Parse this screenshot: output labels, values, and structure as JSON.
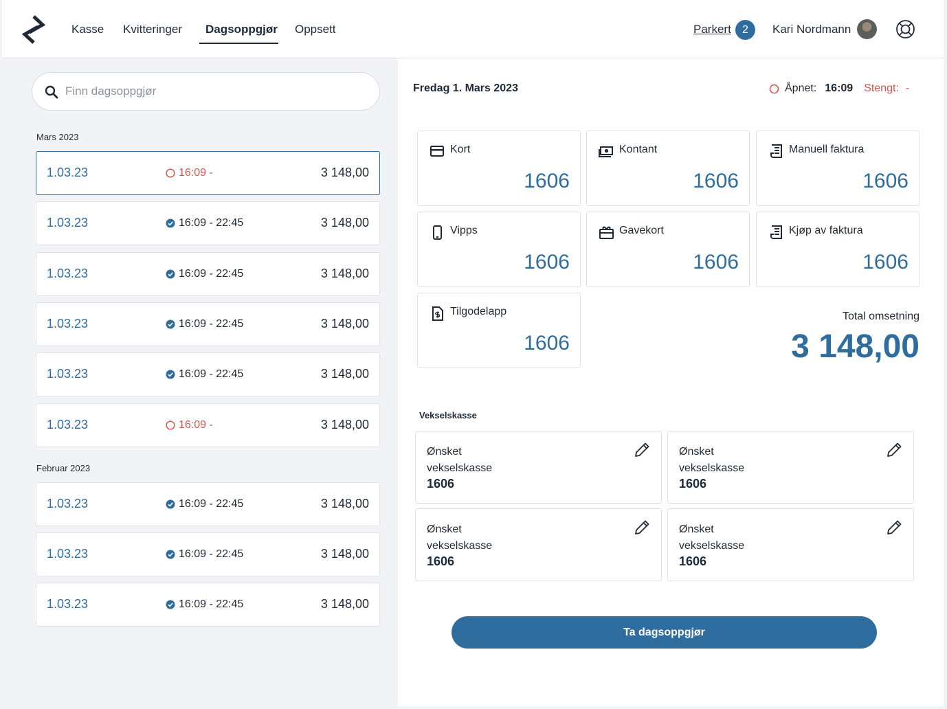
{
  "nav": {
    "items": [
      {
        "label": "Kasse"
      },
      {
        "label": "Kvitteringer"
      },
      {
        "label": "Dagsoppgjør",
        "active": true
      },
      {
        "label": "Oppsett"
      }
    ],
    "parked_label": "Parkert",
    "parked_count": "2",
    "user_name": "Kari Nordmann"
  },
  "search": {
    "placeholder": "Finn dagsoppgjør"
  },
  "groups": [
    {
      "month": "Mars 2023",
      "entries": [
        {
          "date": "1.03.23",
          "status": "open",
          "time": "16:09 -",
          "amount": "3 148,00",
          "selected": true
        },
        {
          "date": "1.03.23",
          "status": "closed",
          "time": "16:09 - 22:45",
          "amount": "3 148,00"
        },
        {
          "date": "1.03.23",
          "status": "closed",
          "time": "16:09 - 22:45",
          "amount": "3 148,00"
        },
        {
          "date": "1.03.23",
          "status": "closed",
          "time": "16:09 - 22:45",
          "amount": "3 148,00"
        },
        {
          "date": "1.03.23",
          "status": "closed",
          "time": "16:09 - 22:45",
          "amount": "3 148,00"
        },
        {
          "date": "1.03.23",
          "status": "open",
          "time": "16:09 -",
          "amount": "3 148,00"
        }
      ]
    },
    {
      "month": "Februar 2023",
      "entries": [
        {
          "date": "1.03.23",
          "status": "closed",
          "time": "16:09 - 22:45",
          "amount": "3 148,00"
        },
        {
          "date": "1.03.23",
          "status": "closed",
          "time": "16:09 - 22:45",
          "amount": "3 148,00"
        },
        {
          "date": "1.03.23",
          "status": "closed",
          "time": "16:09 - 22:45",
          "amount": "3 148,00"
        }
      ]
    }
  ],
  "detail": {
    "title": "Fredag 1. Mars 2023",
    "opened_label": "Åpnet:",
    "opened_time": "16:09",
    "closed_label": "Stengt:",
    "closed_time": "-",
    "payments": [
      {
        "label": "Kort",
        "icon": "card-icon",
        "value": "1606"
      },
      {
        "label": "Kontant",
        "icon": "cash-icon",
        "value": "1606"
      },
      {
        "label": "Manuell faktura",
        "icon": "invoice-icon",
        "value": "1606"
      },
      {
        "label": "Vipps",
        "icon": "phone-icon",
        "value": "1606"
      },
      {
        "label": "Gavekort",
        "icon": "gift-card-icon",
        "value": "1606"
      },
      {
        "label": "Kjøp av faktura",
        "icon": "invoice-icon",
        "value": "1606"
      },
      {
        "label": "Tilgodelapp",
        "icon": "credit-note-icon",
        "value": "1606"
      }
    ],
    "total_label": "Total omsetning",
    "total_value": "3 148,00",
    "vekselskasse_title": "Vekselskasse",
    "vekselskasse": [
      {
        "label": "Ønsket vekselskasse",
        "value": "1606"
      },
      {
        "label": "Ønsket vekselskasse",
        "value": "1606"
      },
      {
        "label": "Ønsket vekselskasse",
        "value": "1606"
      },
      {
        "label": "Ønsket vekselskasse",
        "value": "1606"
      }
    ],
    "button_label": "Ta dagsoppgjør"
  },
  "colors": {
    "accent": "#2f6d9e",
    "warning": "#d9544f"
  }
}
